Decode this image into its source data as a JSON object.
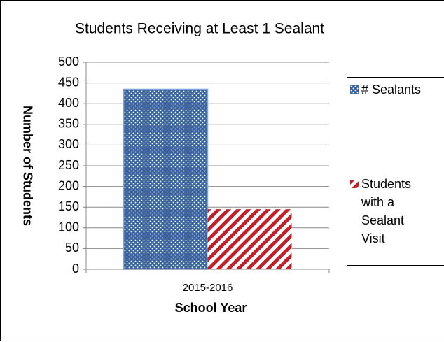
{
  "chart_data": {
    "type": "bar",
    "title": "Students Receiving at Least 1 Sealant",
    "y_label": "Number of Students",
    "x_label": "School Year",
    "categories": [
      "2015-2016"
    ],
    "series": [
      {
        "name": "# Sealants",
        "color": "#3c65a0",
        "pattern": "dots",
        "values": [
          435
        ]
      },
      {
        "name": "Students with a Sealant Visit",
        "color": "#c0202a",
        "pattern": "stripes",
        "values": [
          145
        ]
      }
    ],
    "ylim": [
      0,
      500
    ],
    "yticks": [
      0,
      50,
      100,
      150,
      200,
      250,
      300,
      350,
      400,
      450,
      500
    ],
    "grid": true,
    "legend": "right"
  }
}
